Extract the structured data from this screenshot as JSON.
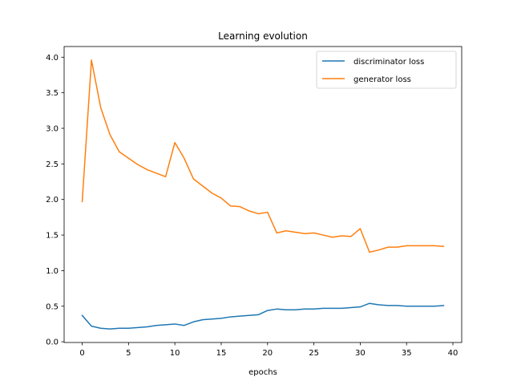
{
  "chart_data": {
    "type": "line",
    "title": "Learning evolution",
    "xlabel": "epochs",
    "ylabel": "",
    "xlim": [
      -1.95,
      40.95
    ],
    "ylim": [
      -0.01,
      4.15
    ],
    "xticks": [
      0,
      5,
      10,
      15,
      20,
      25,
      30,
      35,
      40
    ],
    "xtick_labels": [
      "0",
      "5",
      "10",
      "15",
      "20",
      "25",
      "30",
      "35",
      "40"
    ],
    "yticks": [
      0.0,
      0.5,
      1.0,
      1.5,
      2.0,
      2.5,
      3.0,
      3.5,
      4.0
    ],
    "ytick_labels": [
      "0.0",
      "0.5",
      "1.0",
      "1.5",
      "2.0",
      "2.5",
      "3.0",
      "3.5",
      "4.0"
    ],
    "grid": false,
    "legend_position": "top-right",
    "x": [
      0,
      1,
      2,
      3,
      4,
      5,
      6,
      7,
      8,
      9,
      10,
      11,
      12,
      13,
      14,
      15,
      16,
      17,
      18,
      19,
      20,
      21,
      22,
      23,
      24,
      25,
      26,
      27,
      28,
      29,
      30,
      31,
      32,
      33,
      34,
      35,
      36,
      37,
      38,
      39
    ],
    "series": [
      {
        "name": "discriminator loss",
        "color": "#1f77b4",
        "values": [
          0.37,
          0.22,
          0.19,
          0.18,
          0.19,
          0.19,
          0.2,
          0.21,
          0.23,
          0.24,
          0.25,
          0.23,
          0.28,
          0.31,
          0.32,
          0.33,
          0.35,
          0.36,
          0.37,
          0.38,
          0.44,
          0.46,
          0.45,
          0.45,
          0.46,
          0.46,
          0.47,
          0.47,
          0.47,
          0.48,
          0.49,
          0.54,
          0.52,
          0.51,
          0.51,
          0.5,
          0.5,
          0.5,
          0.5,
          0.51
        ]
      },
      {
        "name": "generator loss",
        "color": "#ff7f0e",
        "values": [
          1.97,
          3.96,
          3.29,
          2.91,
          2.67,
          2.58,
          2.49,
          2.42,
          2.37,
          2.32,
          2.8,
          2.58,
          2.29,
          2.19,
          2.09,
          2.02,
          1.91,
          1.9,
          1.84,
          1.8,
          1.82,
          1.53,
          1.56,
          1.54,
          1.52,
          1.53,
          1.5,
          1.47,
          1.49,
          1.48,
          1.59,
          1.26,
          1.29,
          1.33,
          1.33,
          1.35,
          1.35,
          1.35,
          1.35,
          1.34
        ]
      }
    ]
  }
}
